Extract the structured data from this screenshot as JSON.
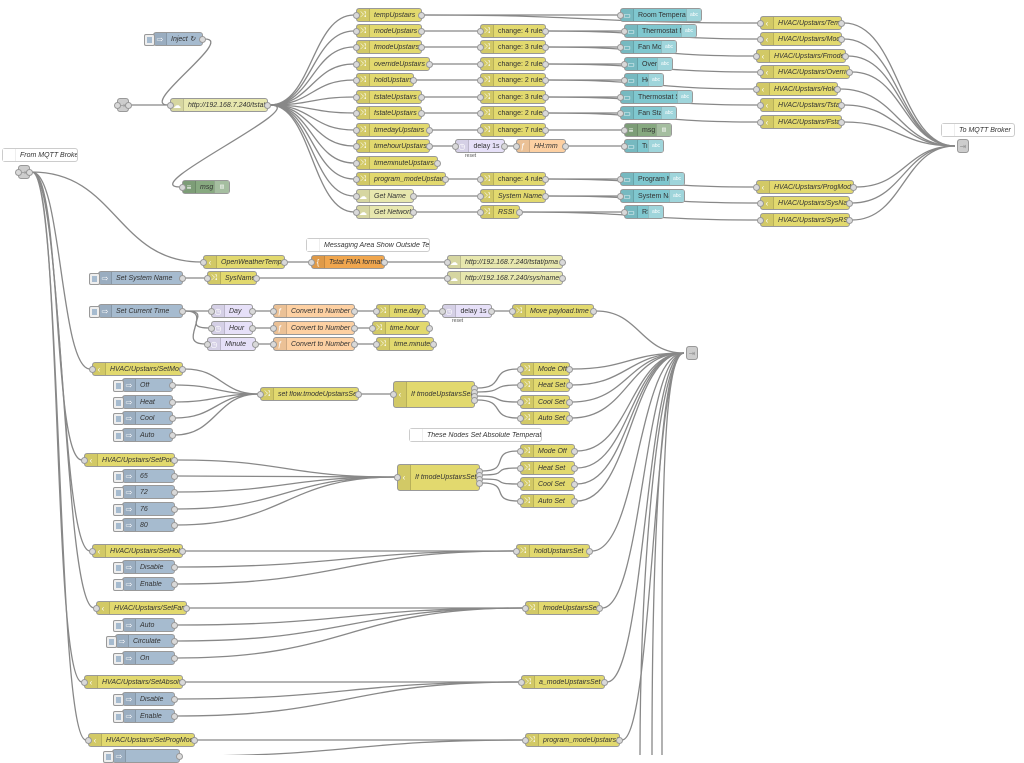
{
  "nodes": [
    {
      "id": "inject1",
      "label": "Inject ↻",
      "type": "inject"
    },
    {
      "id": "linkin1",
      "label": "",
      "type": "link"
    },
    {
      "id": "http1",
      "label": "http://192.168.7.240/tstat",
      "type": "http"
    },
    {
      "id": "debug1",
      "label": "msg",
      "type": "debug"
    },
    {
      "id": "temp",
      "label": "tempUpstairs",
      "type": "change"
    },
    {
      "id": "mode",
      "label": "modeUpstairs",
      "type": "change"
    },
    {
      "id": "fmode",
      "label": "fmodeUpstairs",
      "type": "change"
    },
    {
      "id": "override",
      "label": "overrideUpstairs",
      "type": "change"
    },
    {
      "id": "hold",
      "label": "holdUpstairs",
      "type": "change"
    },
    {
      "id": "tstate",
      "label": "tstateUpstairs",
      "type": "change"
    },
    {
      "id": "fstate",
      "label": "fstateUpstairs",
      "type": "change"
    },
    {
      "id": "timeday",
      "label": "timedayUpstairs",
      "type": "change"
    },
    {
      "id": "timehour",
      "label": "timehourUpstairs",
      "type": "change"
    },
    {
      "id": "timeminute",
      "label": "timeminuteUpstairs",
      "type": "change"
    },
    {
      "id": "progmode",
      "label": "program_modeUpstairs",
      "type": "change"
    },
    {
      "id": "getname",
      "label": "Get Name",
      "type": "http"
    },
    {
      "id": "getnet",
      "label": "Get Network",
      "type": "http"
    },
    {
      "id": "ch_mode",
      "label": "change: 4 rules",
      "type": "change",
      "plain": true
    },
    {
      "id": "ch_fmode",
      "label": "change: 3 rules",
      "type": "change",
      "plain": true
    },
    {
      "id": "ch_override",
      "label": "change: 2 rules",
      "type": "change",
      "plain": true
    },
    {
      "id": "ch_hold",
      "label": "change: 2 rules",
      "type": "change",
      "plain": true
    },
    {
      "id": "ch_tstate",
      "label": "change: 3 rules",
      "type": "change",
      "plain": true
    },
    {
      "id": "ch_fstate",
      "label": "change: 2 rules",
      "type": "change",
      "plain": true
    },
    {
      "id": "ch_day",
      "label": "change: 7 rules",
      "type": "change",
      "plain": true
    },
    {
      "id": "delay1",
      "label": "delay 1s",
      "type": "delay",
      "plain": true,
      "sub": "reset"
    },
    {
      "id": "hhmm",
      "label": "HH:mm",
      "type": "function"
    },
    {
      "id": "ch_prog",
      "label": "change: 4 rules",
      "type": "change",
      "plain": true
    },
    {
      "id": "sysname",
      "label": "System Name",
      "type": "change"
    },
    {
      "id": "rssi",
      "label": "RSSI",
      "type": "change"
    },
    {
      "id": "ui_room",
      "label": "Room Temperature",
      "type": "ui",
      "plain": true,
      "tag": "abc"
    },
    {
      "id": "ui_tmode",
      "label": "Thermostat Mode",
      "type": "ui",
      "plain": true,
      "tag": "abc"
    },
    {
      "id": "ui_fan",
      "label": "Fan Mode",
      "type": "ui",
      "plain": true,
      "tag": "abc"
    },
    {
      "id": "ui_override",
      "label": "Override",
      "type": "ui",
      "plain": true,
      "tag": "abc"
    },
    {
      "id": "ui_hold",
      "label": "Hold",
      "type": "ui",
      "plain": true,
      "tag": "abc"
    },
    {
      "id": "ui_tstate",
      "label": "Thermostat State",
      "type": "ui",
      "plain": true,
      "tag": "abc"
    },
    {
      "id": "ui_fstate",
      "label": "Fan State",
      "type": "ui",
      "plain": true,
      "tag": "abc"
    },
    {
      "id": "debug2",
      "label": "msg",
      "type": "debug",
      "plain": true
    },
    {
      "id": "ui_time",
      "label": "Time",
      "type": "ui",
      "plain": true,
      "tag": "abc"
    },
    {
      "id": "ui_prog",
      "label": "Program Mode",
      "type": "ui",
      "plain": true,
      "tag": "abc"
    },
    {
      "id": "ui_sysname",
      "label": "System Name",
      "type": "ui",
      "plain": true,
      "tag": "abc"
    },
    {
      "id": "ui_rssi",
      "label": "RSSI",
      "type": "ui",
      "plain": true,
      "tag": "abc"
    },
    {
      "id": "mq_temp",
      "label": "HVAC/Upstairs/Temp",
      "type": "mqtt"
    },
    {
      "id": "mq_mode",
      "label": "HVAC/Upstairs/Mode",
      "type": "mqtt"
    },
    {
      "id": "mq_fmode",
      "label": "HVAC/Upstairs/Fmode",
      "type": "mqtt"
    },
    {
      "id": "mq_override",
      "label": "HVAC/Upstairs/Override",
      "type": "mqtt"
    },
    {
      "id": "mq_hold",
      "label": "HVAC/Upstairs/Hold",
      "type": "mqtt"
    },
    {
      "id": "mq_tstate",
      "label": "HVAC/Upstairs/Tstate",
      "type": "mqtt"
    },
    {
      "id": "mq_fstate",
      "label": "HVAC/Upstairs/Fstate",
      "type": "mqtt"
    },
    {
      "id": "mq_prog",
      "label": "HVAC/Upstairs/ProgMode",
      "type": "mqtt"
    },
    {
      "id": "mq_sysname",
      "label": "HVAC/Upstairs/SysName",
      "type": "mqtt"
    },
    {
      "id": "mq_rssi",
      "label": "HVAC/Upstairs/SysRSSI",
      "type": "mqtt"
    },
    {
      "id": "c_tomqtt",
      "label": "To MQTT Broker",
      "type": "comment"
    },
    {
      "id": "linkout1",
      "label": "",
      "type": "link"
    },
    {
      "id": "c_frommqtt",
      "label": "From MQTT Broker",
      "type": "comment"
    },
    {
      "id": "linkin2",
      "label": "",
      "type": "link"
    },
    {
      "id": "c_msg",
      "label": "Messaging Area Show Outside Temp",
      "type": "comment"
    },
    {
      "id": "ow",
      "label": "OpenWeatherTemp",
      "type": "mqtt"
    },
    {
      "id": "tfma",
      "label": "Tstat FMA format",
      "type": "template"
    },
    {
      "id": "http2",
      "label": "http://192.168.7.240/tstat/pma",
      "type": "http"
    },
    {
      "id": "inj_sysname",
      "label": "Set System Name",
      "type": "inject"
    },
    {
      "id": "sysname2",
      "label": "SysName",
      "type": "change"
    },
    {
      "id": "http3",
      "label": "http://192.168.7.240/sys/name",
      "type": "http"
    },
    {
      "id": "inj_time",
      "label": "Set Current Time",
      "type": "inject"
    },
    {
      "id": "day",
      "label": "Day",
      "type": "trigger"
    },
    {
      "id": "hour",
      "label": "Hour",
      "type": "trigger"
    },
    {
      "id": "minute",
      "label": "Minute",
      "type": "trigger"
    },
    {
      "id": "conv1",
      "label": "Convert to Number",
      "type": "function"
    },
    {
      "id": "conv2",
      "label": "Convert to Number",
      "type": "function"
    },
    {
      "id": "conv3",
      "label": "Convert to Number",
      "type": "function"
    },
    {
      "id": "tday",
      "label": "time.day",
      "type": "change"
    },
    {
      "id": "thour",
      "label": "time.hour",
      "type": "change"
    },
    {
      "id": "tminute",
      "label": "time.minute",
      "type": "change"
    },
    {
      "id": "delay2",
      "label": "delay 1s",
      "type": "delay",
      "plain": true,
      "sub": "reset"
    },
    {
      "id": "move",
      "label": "Move payload.time",
      "type": "change"
    },
    {
      "id": "linkout2",
      "label": "",
      "type": "link"
    },
    {
      "id": "setmode",
      "label": "HVAC/Upstairs/SetMode",
      "type": "mqtt"
    },
    {
      "id": "i_off",
      "label": "Off",
      "type": "inject"
    },
    {
      "id": "i_heat",
      "label": "Heat",
      "type": "inject"
    },
    {
      "id": "i_cool",
      "label": "Cool",
      "type": "inject"
    },
    {
      "id": "i_auto",
      "label": "Auto",
      "type": "inject"
    },
    {
      "id": "setflow",
      "label": "set flow.tmodeUpstairsSet",
      "type": "change"
    },
    {
      "id": "sw1",
      "label": "If tmodeUpstairsSet",
      "type": "switch"
    },
    {
      "id": "m_off1",
      "label": "Mode Off",
      "type": "change"
    },
    {
      "id": "m_heat1",
      "label": "Heat Set",
      "type": "change"
    },
    {
      "id": "m_cool1",
      "label": "Cool Set",
      "type": "change"
    },
    {
      "id": "m_auto1",
      "label": "Auto Set",
      "type": "change"
    },
    {
      "id": "c_abs",
      "label": "These Nodes Set Absolute Temperature",
      "type": "comment"
    },
    {
      "id": "setpoint",
      "label": "HVAC/Upstairs/SetPoint",
      "type": "mqtt"
    },
    {
      "id": "i_65",
      "label": "65",
      "type": "inject"
    },
    {
      "id": "i_72",
      "label": "72",
      "type": "inject"
    },
    {
      "id": "i_76",
      "label": "76",
      "type": "inject"
    },
    {
      "id": "i_80",
      "label": "80",
      "type": "inject"
    },
    {
      "id": "sw2",
      "label": "If tmodeUpstairsSet",
      "type": "switch"
    },
    {
      "id": "m_off2",
      "label": "Mode Off",
      "type": "change"
    },
    {
      "id": "m_heat2",
      "label": "Heat Set",
      "type": "change"
    },
    {
      "id": "m_cool2",
      "label": "Cool Set",
      "type": "change"
    },
    {
      "id": "m_auto2",
      "label": "Auto Set",
      "type": "change"
    },
    {
      "id": "sethold",
      "label": "HVAC/Upstairs/SetHold",
      "type": "mqtt"
    },
    {
      "id": "i_dis1",
      "label": "Disable",
      "type": "inject"
    },
    {
      "id": "i_en1",
      "label": "Enable",
      "type": "inject"
    },
    {
      "id": "holdset",
      "label": "holdUpstairsSet",
      "type": "change"
    },
    {
      "id": "setfan",
      "label": "HVAC/Upstairs/SetFan",
      "type": "mqtt"
    },
    {
      "id": "i_fauto",
      "label": "Auto",
      "type": "inject"
    },
    {
      "id": "i_circ",
      "label": "Circulate",
      "type": "inject"
    },
    {
      "id": "i_on",
      "label": "On",
      "type": "inject"
    },
    {
      "id": "fmodeset",
      "label": "fmodeUpstairsSet",
      "type": "change"
    },
    {
      "id": "setabs",
      "label": "HVAC/Upstairs/SetAbsolute",
      "type": "mqtt"
    },
    {
      "id": "i_dis2",
      "label": "Disable",
      "type": "inject"
    },
    {
      "id": "i_en2",
      "label": "Enable",
      "type": "inject"
    },
    {
      "id": "amodeset",
      "label": "a_modeUpstairsSet",
      "type": "change"
    },
    {
      "id": "setprog",
      "label": "HVAC/Upstairs/SetProgMode",
      "type": "mqtt"
    },
    {
      "id": "progset",
      "label": "program_modeUpstairsSet",
      "type": "change"
    },
    {
      "id": "i_prog1",
      "label": "",
      "type": "inject"
    }
  ],
  "wires": [
    [
      "inject1",
      "http1"
    ],
    [
      "linkin1",
      "http1"
    ],
    [
      "http1",
      "temp"
    ],
    [
      "http1",
      "mode"
    ],
    [
      "http1",
      "fmode"
    ],
    [
      "http1",
      "override"
    ],
    [
      "http1",
      "hold"
    ],
    [
      "http1",
      "tstate"
    ],
    [
      "http1",
      "fstate"
    ],
    [
      "http1",
      "timeday"
    ],
    [
      "http1",
      "timehour"
    ],
    [
      "http1",
      "timeminute"
    ],
    [
      "http1",
      "progmode"
    ],
    [
      "http1",
      "getname"
    ],
    [
      "http1",
      "getnet"
    ],
    [
      "http1",
      "debug1"
    ],
    [
      "temp",
      "ui_room"
    ],
    [
      "temp",
      "mq_temp"
    ],
    [
      "mode",
      "ch_mode"
    ],
    [
      "ch_mode",
      "ui_tmode"
    ],
    [
      "ch_mode",
      "mq_mode"
    ],
    [
      "fmode",
      "ch_fmode"
    ],
    [
      "ch_fmode",
      "ui_fan"
    ],
    [
      "ch_fmode",
      "mq_fmode"
    ],
    [
      "override",
      "ch_override"
    ],
    [
      "ch_override",
      "ui_override"
    ],
    [
      "ch_override",
      "mq_override"
    ],
    [
      "hold",
      "ch_hold"
    ],
    [
      "ch_hold",
      "ui_hold"
    ],
    [
      "ch_hold",
      "mq_hold"
    ],
    [
      "tstate",
      "ch_tstate"
    ],
    [
      "ch_tstate",
      "ui_tstate"
    ],
    [
      "ch_tstate",
      "mq_tstate"
    ],
    [
      "fstate",
      "ch_fstate"
    ],
    [
      "ch_fstate",
      "ui_fstate"
    ],
    [
      "ch_fstate",
      "mq_fstate"
    ],
    [
      "timeday",
      "ch_day"
    ],
    [
      "ch_day",
      "debug2"
    ],
    [
      "timehour",
      "delay1"
    ],
    [
      "delay1",
      "hhmm"
    ],
    [
      "hhmm",
      "ui_time"
    ],
    [
      "progmode",
      "ch_prog"
    ],
    [
      "ch_prog",
      "ui_prog"
    ],
    [
      "ch_prog",
      "mq_prog"
    ],
    [
      "getname",
      "sysname"
    ],
    [
      "sysname",
      "ui_sysname"
    ],
    [
      "sysname",
      "mq_sysname"
    ],
    [
      "getnet",
      "rssi"
    ],
    [
      "rssi",
      "ui_rssi"
    ],
    [
      "rssi",
      "mq_rssi"
    ],
    [
      "mq_temp",
      "linkout1"
    ],
    [
      "mq_mode",
      "linkout1"
    ],
    [
      "mq_fmode",
      "linkout1"
    ],
    [
      "mq_override",
      "linkout1"
    ],
    [
      "mq_hold",
      "linkout1"
    ],
    [
      "mq_tstate",
      "linkout1"
    ],
    [
      "mq_fstate",
      "linkout1"
    ],
    [
      "mq_prog",
      "linkout1"
    ],
    [
      "mq_sysname",
      "linkout1"
    ],
    [
      "mq_rssi",
      "linkout1"
    ],
    [
      "linkin2",
      "ow"
    ],
    [
      "linkin2",
      "setmode"
    ],
    [
      "linkin2",
      "setpoint"
    ],
    [
      "linkin2",
      "sethold"
    ],
    [
      "linkin2",
      "setfan"
    ],
    [
      "linkin2",
      "setabs"
    ],
    [
      "linkin2",
      "setprog"
    ],
    [
      "ow",
      "tfma"
    ],
    [
      "tfma",
      "http2"
    ],
    [
      "inj_sysname",
      "sysname2"
    ],
    [
      "sysname2",
      "http3"
    ],
    [
      "inj_time",
      "day"
    ],
    [
      "inj_time",
      "hour"
    ],
    [
      "inj_time",
      "minute"
    ],
    [
      "day",
      "conv1"
    ],
    [
      "conv1",
      "tday"
    ],
    [
      "tday",
      "delay2"
    ],
    [
      "delay2",
      "move"
    ],
    [
      "hour",
      "conv2"
    ],
    [
      "conv2",
      "thour"
    ],
    [
      "minute",
      "conv3"
    ],
    [
      "conv3",
      "tminute"
    ],
    [
      "move",
      "linkout2"
    ],
    [
      "setmode",
      "setflow"
    ],
    [
      "i_off",
      "setflow"
    ],
    [
      "i_heat",
      "setflow"
    ],
    [
      "i_cool",
      "setflow"
    ],
    [
      "i_auto",
      "setflow"
    ],
    [
      "setflow",
      "sw1"
    ],
    [
      "sw1:0",
      "m_off1"
    ],
    [
      "sw1:1",
      "m_heat1"
    ],
    [
      "sw1:2",
      "m_cool1"
    ],
    [
      "sw1:3",
      "m_auto1"
    ],
    [
      "m_off1",
      "linkout2"
    ],
    [
      "m_heat1",
      "linkout2"
    ],
    [
      "m_cool1",
      "linkout2"
    ],
    [
      "m_auto1",
      "linkout2"
    ],
    [
      "setpoint",
      "sw2"
    ],
    [
      "i_65",
      "sw2"
    ],
    [
      "i_72",
      "sw2"
    ],
    [
      "i_76",
      "sw2"
    ],
    [
      "i_80",
      "sw2"
    ],
    [
      "sw2:0",
      "m_off2"
    ],
    [
      "sw2:1",
      "m_heat2"
    ],
    [
      "sw2:2",
      "m_cool2"
    ],
    [
      "sw2:3",
      "m_auto2"
    ],
    [
      "m_off2",
      "linkout2"
    ],
    [
      "m_heat2",
      "linkout2"
    ],
    [
      "m_cool2",
      "linkout2"
    ],
    [
      "m_auto2",
      "linkout2"
    ],
    [
      "sethold",
      "holdset"
    ],
    [
      "i_dis1",
      "holdset"
    ],
    [
      "i_en1",
      "holdset"
    ],
    [
      "holdset",
      "linkout2"
    ],
    [
      "setfan",
      "fmodeset"
    ],
    [
      "i_fauto",
      "fmodeset"
    ],
    [
      "i_circ",
      "fmodeset"
    ],
    [
      "i_on",
      "fmodeset"
    ],
    [
      "fmodeset",
      "linkout2"
    ],
    [
      "setabs",
      "amodeset"
    ],
    [
      "i_dis2",
      "amodeset"
    ],
    [
      "i_en2",
      "amodeset"
    ],
    [
      "amodeset",
      "linkout2"
    ],
    [
      "setprog",
      "progset"
    ],
    [
      "progset",
      "linkout2"
    ],
    [
      "i_prog1",
      "progset"
    ]
  ],
  "colors": {
    "canvas": "#ffffff",
    "wire": "#888888",
    "inject": "#a6bbcf",
    "change": "#e2d96e",
    "http": "#e7e7ae",
    "ui": "#7fc7cf",
    "debug": "#87a980",
    "delay": "#e6e0f8",
    "function": "#fdd0a2",
    "template": "#f0a64e",
    "link": "#dddddd"
  },
  "icons": {
    "inject": "arrow-right-icon",
    "change": "shuffle-icon",
    "mqtt": "mqtt-bridge-icon",
    "switch": "switch-icon",
    "http": "globe-icon",
    "ui": "ui-text-icon",
    "debug": "bug-icon",
    "delay": "timer-icon",
    "trigger": "timer-icon",
    "function": "function-icon",
    "template": "template-icon",
    "link": "link-icon",
    "comment": "comment-icon"
  }
}
